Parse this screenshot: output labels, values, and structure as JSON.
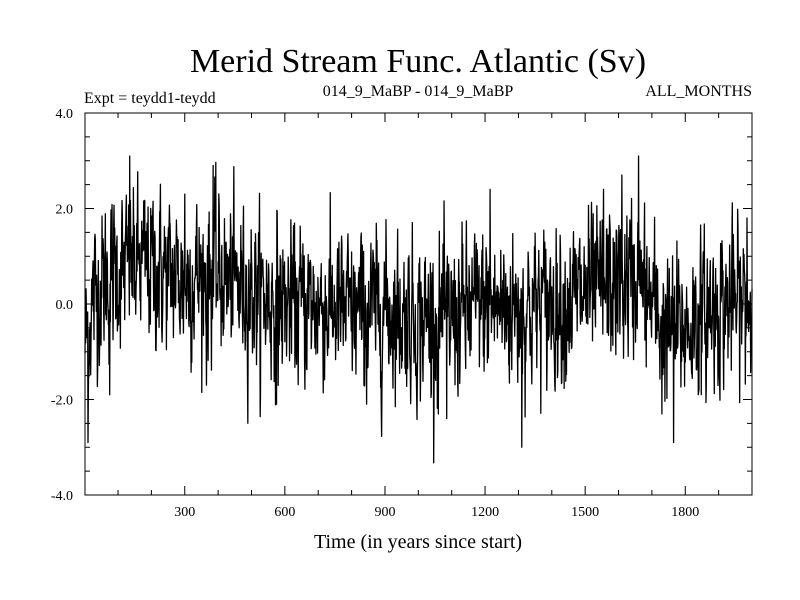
{
  "chart_data": {
    "type": "line",
    "title": "Merid Stream Func. Atlantic (Sv)",
    "experiment_label": "Expt = teydd1-teydd",
    "period_label": "014_9_MaBP - 014_9_MaBP",
    "months_label": "ALL_MONTHS",
    "xlabel": "Time (in years since start)",
    "ylabel": "",
    "xlim": [
      1,
      2000
    ],
    "ylim": [
      -4.0,
      4.0
    ],
    "x_ticks": [
      300,
      600,
      900,
      1200,
      1500,
      1800
    ],
    "x_tick_labels": [
      "300",
      "600",
      "900",
      "1200",
      "1500",
      "1800"
    ],
    "y_ticks": [
      -4.0,
      -2.0,
      0.0,
      2.0,
      4.0
    ],
    "y_tick_labels": [
      "-4.0",
      "-2.0",
      "0.0",
      "2.0",
      "4.0"
    ],
    "grid": false,
    "series": [
      {
        "name": "teydd1-teydd",
        "color": "#000000",
        "x_start": 1,
        "x_step": 1,
        "n_points": 2000,
        "mean_profile": {
          "x": [
            1,
            30,
            60,
            100,
            150,
            200,
            250,
            300,
            350,
            400,
            450,
            500,
            550,
            600,
            700,
            800,
            900,
            1000,
            1100,
            1200,
            1300,
            1400,
            1500,
            1550,
            1600,
            1650,
            1700,
            1750,
            1800,
            1850,
            1900,
            1950,
            2000
          ],
          "y": [
            -0.8,
            0.2,
            0.5,
            0.7,
            0.8,
            0.8,
            0.6,
            0.5,
            0.6,
            0.6,
            0.4,
            0.3,
            0.1,
            0.0,
            0.0,
            -0.2,
            -0.1,
            -0.3,
            -0.3,
            0.0,
            -0.1,
            0.0,
            0.2,
            0.3,
            0.4,
            0.5,
            0.0,
            -0.6,
            -0.5,
            -0.3,
            0.0,
            0.0,
            0.0
          ]
        },
        "noise_std": 0.75,
        "peaks": [
          {
            "x": 10,
            "y": -2.9
          },
          {
            "x": 75,
            "y": -1.9
          },
          {
            "x": 135,
            "y": 3.1
          },
          {
            "x": 300,
            "y": 2.3
          },
          {
            "x": 365,
            "y": -1.7
          },
          {
            "x": 385,
            "y": 2.9
          },
          {
            "x": 575,
            "y": -2.1
          },
          {
            "x": 845,
            "y": -2.1
          },
          {
            "x": 1060,
            "y": -2.3
          },
          {
            "x": 1085,
            "y": -2.4
          },
          {
            "x": 1215,
            "y": 2.4
          },
          {
            "x": 1310,
            "y": -3.0
          },
          {
            "x": 1555,
            "y": 2.4
          },
          {
            "x": 1610,
            "y": 2.7
          },
          {
            "x": 1660,
            "y": 3.1
          },
          {
            "x": 1730,
            "y": -2.3
          },
          {
            "x": 1765,
            "y": -2.9
          },
          {
            "x": 1985,
            "y": 1.8
          }
        ]
      }
    ]
  }
}
